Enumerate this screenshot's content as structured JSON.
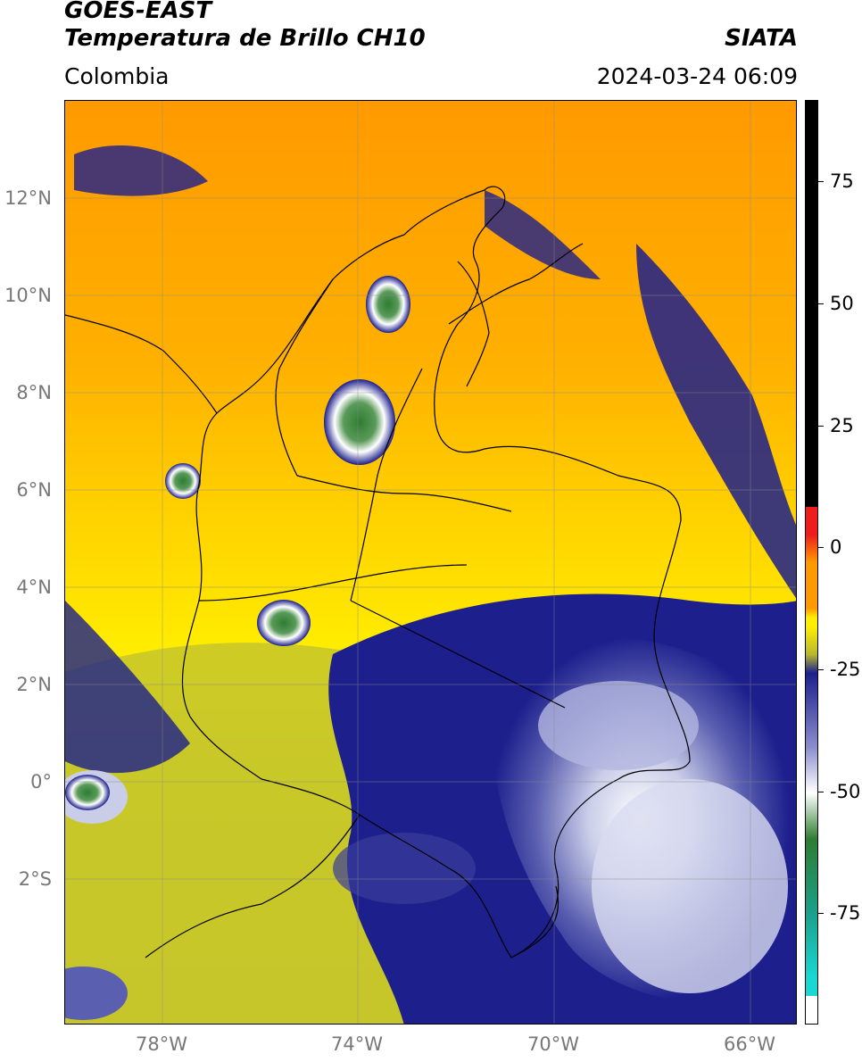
{
  "header": {
    "title_line1": "GOES-EAST",
    "title_line2": "Temperatura de Brillo CH10",
    "brand": "SIATA",
    "region": "Colombia",
    "datetime": "2024-03-24 06:09"
  },
  "map": {
    "lat_labels": [
      "12°N",
      "10°N",
      "8°N",
      "6°N",
      "4°N",
      "2°N",
      "0°",
      "2°S"
    ],
    "lon_labels": [
      "78°W",
      "74°W",
      "70°W",
      "66°W"
    ],
    "lat_range": [
      -5,
      14
    ],
    "lon_range": [
      -80,
      -64.9
    ]
  },
  "colorbar": {
    "labels": [
      "75",
      "50",
      "25",
      "0",
      "-25",
      "-50",
      "-75"
    ],
    "values": [
      75,
      50,
      25,
      0,
      -25,
      -50,
      -75
    ],
    "range": [
      -100,
      90
    ],
    "colors": {
      "black": "#000000",
      "red": "#ee1c1c",
      "orange": "#ff9900",
      "yellow": "#ffee00",
      "olive": "#b8b830",
      "navy": "#1c1f8c",
      "white": "#ffffff",
      "green": "#2e7d32",
      "cyan": "#1ad7d2"
    }
  }
}
